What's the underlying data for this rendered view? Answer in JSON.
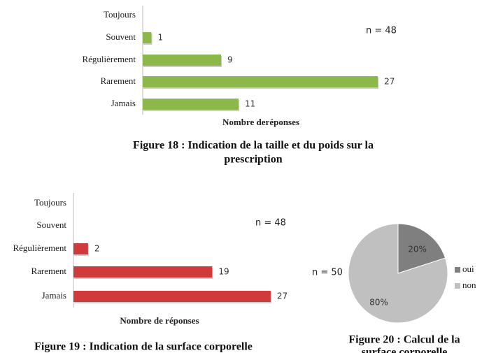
{
  "chart_data": [
    {
      "type": "hbar",
      "categories": [
        "Toujours",
        "Souvent",
        "Régulièrement",
        "Rarement",
        "Jamais"
      ],
      "values": [
        null,
        1,
        9,
        27,
        11
      ],
      "color": "#8cb84a",
      "xlim": [
        0,
        30
      ],
      "xlabel": "Nombre deréponses",
      "annotation": "n = 48",
      "caption": [
        "Figure 18 : Indication de la taille et du poids sur la",
        "prescription"
      ]
    },
    {
      "type": "hbar",
      "categories": [
        "Toujours",
        "Souvent",
        "Régulièrement",
        "Rarement",
        "Jamais"
      ],
      "values": [
        null,
        null,
        2,
        19,
        27
      ],
      "color": "#d03a3a",
      "xlim": [
        0,
        30
      ],
      "xlabel": "Nombre de réponses",
      "annotation": "n = 48",
      "caption": [
        "Figure 19 : Indication de la surface corporelle"
      ]
    },
    {
      "type": "pie",
      "categories": [
        "oui",
        "non"
      ],
      "values": [
        20,
        80
      ],
      "value_labels": [
        "20%",
        "80%"
      ],
      "colors": [
        "#7f7f7f",
        "#c0c0c0"
      ],
      "annotation": "n = 50",
      "caption": [
        "Figure 20 : Calcul de la",
        "surface corporelle"
      ]
    }
  ]
}
